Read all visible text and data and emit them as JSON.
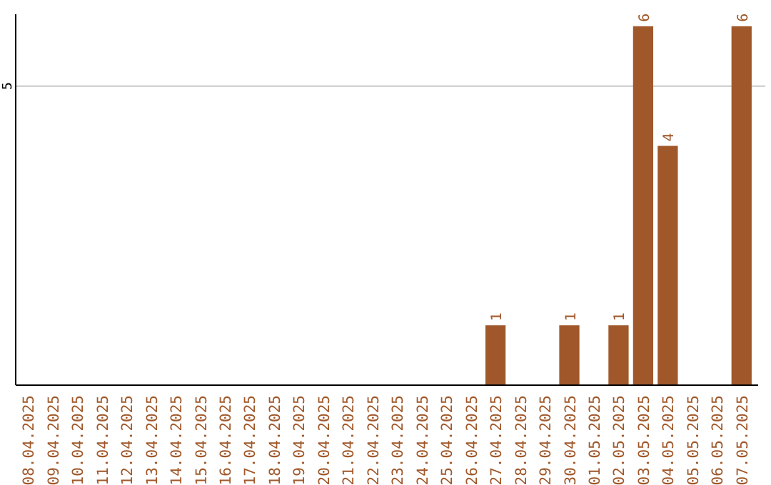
{
  "chart_data": {
    "type": "bar",
    "categories": [
      "08.04.2025",
      "09.04.2025",
      "10.04.2025",
      "11.04.2025",
      "12.04.2025",
      "13.04.2025",
      "14.04.2025",
      "15.04.2025",
      "16.04.2025",
      "17.04.2025",
      "18.04.2025",
      "19.04.2025",
      "20.04.2025",
      "21.04.2025",
      "22.04.2025",
      "23.04.2025",
      "24.04.2025",
      "25.04.2025",
      "26.04.2025",
      "27.04.2025",
      "28.04.2025",
      "29.04.2025",
      "30.04.2025",
      "01.05.2025",
      "02.05.2025",
      "03.05.2025",
      "04.05.2025",
      "05.05.2025",
      "06.05.2025",
      "07.05.2025"
    ],
    "values": [
      null,
      null,
      null,
      null,
      null,
      null,
      null,
      null,
      null,
      null,
      null,
      null,
      null,
      null,
      null,
      null,
      null,
      null,
      null,
      1,
      null,
      null,
      1,
      null,
      1,
      6,
      4,
      null,
      null,
      6
    ],
    "data_labels": true,
    "color": "#a0582a",
    "ylim": [
      0,
      6.2
    ],
    "yticks": [
      5
    ],
    "grid": "y"
  }
}
